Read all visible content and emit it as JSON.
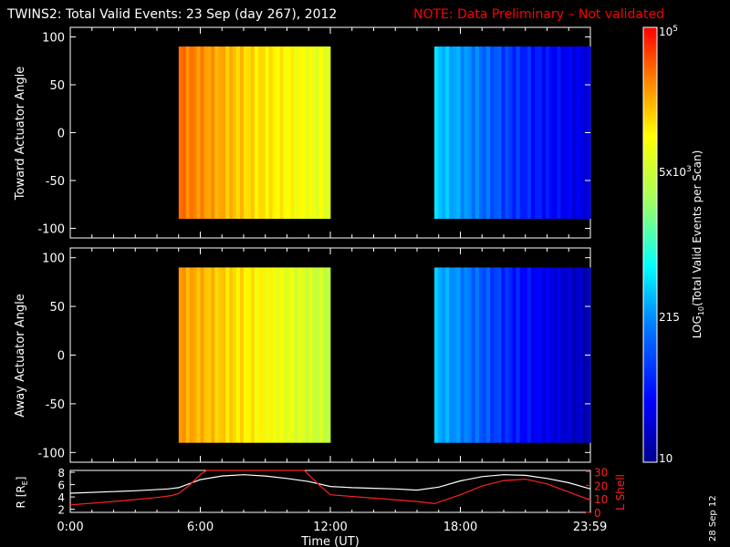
{
  "header": {
    "title": "TWINS2: Total Valid Events: 23 Sep (day 267), 2012",
    "note": "NOTE: Data Preliminary – Not validated"
  },
  "colors": {
    "background": "#000000",
    "axes": "#ffffff",
    "note": "#ff0000",
    "r_line": "#ffffff",
    "lshell_line": "#ff2020"
  },
  "date_stamp": "28 Sep 12",
  "colorbar": {
    "title": "LOG",
    "title_sub": "10",
    "title_rest": "(Total Valid Events per Scan)",
    "tick_labels": {
      "t10": "10",
      "t215": "215",
      "t5e3_base": "5x10",
      "t5e3_exp": "3",
      "t1e5_base": "10",
      "t1e5_exp": "5"
    },
    "colormap": [
      "#00008c",
      "#0000ff",
      "#0080ff",
      "#00ffff",
      "#a0ff60",
      "#ffff00",
      "#ff8000",
      "#ff0000"
    ]
  },
  "chart_data": [
    {
      "type": "heatmap",
      "name": "toward",
      "title": "",
      "xlabel": "",
      "ylabel": "Toward Actuator Angle",
      "xlim": [
        0,
        24
      ],
      "ylim": [
        -110,
        110
      ],
      "yticks": [
        100,
        50,
        0,
        -50,
        -100
      ],
      "ytick_labels": [
        "100",
        "50",
        "0",
        "-50",
        "-100"
      ],
      "data_windows_hours": [
        [
          5.0,
          12.0
        ],
        [
          16.8,
          24.0
        ]
      ],
      "angle_range": [
        -90,
        90
      ],
      "color_scale": "log",
      "value_range": [
        10,
        100000
      ],
      "approx_levels_log10": {
        "window1": [
          4.5,
          4.0,
          3.7
        ],
        "window2": [
          2.5,
          1.8,
          1.4
        ]
      }
    },
    {
      "type": "heatmap",
      "name": "away",
      "title": "",
      "xlabel": "",
      "ylabel": "Away Actuator Angle",
      "xlim": [
        0,
        24
      ],
      "ylim": [
        -110,
        110
      ],
      "yticks": [
        100,
        50,
        0,
        -50,
        -100
      ],
      "ytick_labels": [
        "100",
        "50",
        "0",
        "-50",
        "-100"
      ],
      "data_windows_hours": [
        [
          5.0,
          12.0
        ],
        [
          16.8,
          24.0
        ]
      ],
      "angle_range": [
        -90,
        90
      ],
      "color_scale": "log",
      "value_range": [
        10,
        100000
      ],
      "approx_levels_log10": {
        "window1": [
          4.3,
          3.9,
          3.5
        ],
        "window2": [
          2.4,
          1.7,
          1.2
        ]
      }
    },
    {
      "type": "line",
      "name": "orbit",
      "xlabel": "Time (UT)",
      "ylabel_left": "R [R",
      "ylabel_left_sub": "E",
      "ylabel_left_close": "]",
      "ylabel_right": "L Shell",
      "xlim": [
        0,
        24
      ],
      "xticks": [
        0,
        6,
        12,
        18,
        23.983
      ],
      "xtick_labels": [
        "0:00",
        "6:00",
        "12:00",
        "18:00",
        "23:59"
      ],
      "ylim_left": [
        1.5,
        8.3
      ],
      "yticks_left": [
        2,
        4,
        6,
        8
      ],
      "ytick_labels_left": [
        "2",
        "4",
        "6",
        "8"
      ],
      "ylim_right": [
        0,
        31
      ],
      "yticks_right": [
        0,
        10,
        20,
        30
      ],
      "ytick_labels_right": [
        "0",
        "10",
        "20",
        "30"
      ],
      "series": [
        {
          "name": "R",
          "axis": "left",
          "x": [
            0,
            3,
            4.5,
            5,
            6,
            7,
            8,
            9,
            10,
            11,
            12,
            13,
            14,
            15,
            16,
            17,
            18,
            19,
            20,
            21,
            22,
            23,
            24
          ],
          "y": [
            4.6,
            5.0,
            5.3,
            5.5,
            6.8,
            7.4,
            7.6,
            7.4,
            7.0,
            6.5,
            5.7,
            5.5,
            5.4,
            5.3,
            5.1,
            5.6,
            6.6,
            7.3,
            7.6,
            7.5,
            7.0,
            6.3,
            5.3
          ]
        },
        {
          "name": "L Shell",
          "axis": "right",
          "x": [
            0,
            2,
            4,
            4.7,
            5.0,
            5.5,
            6.0,
            6.3,
            10.8,
            11.5,
            12.0,
            14,
            16,
            16.8,
            18,
            19,
            20,
            21,
            22,
            23,
            24
          ],
          "y": [
            5.5,
            8.0,
            11.0,
            12.5,
            14.0,
            20.0,
            28.0,
            31.0,
            31.0,
            20.0,
            13.0,
            10.5,
            8.0,
            6.5,
            13.0,
            19.5,
            23.5,
            24.5,
            21.0,
            15.0,
            9.0
          ]
        }
      ]
    }
  ]
}
